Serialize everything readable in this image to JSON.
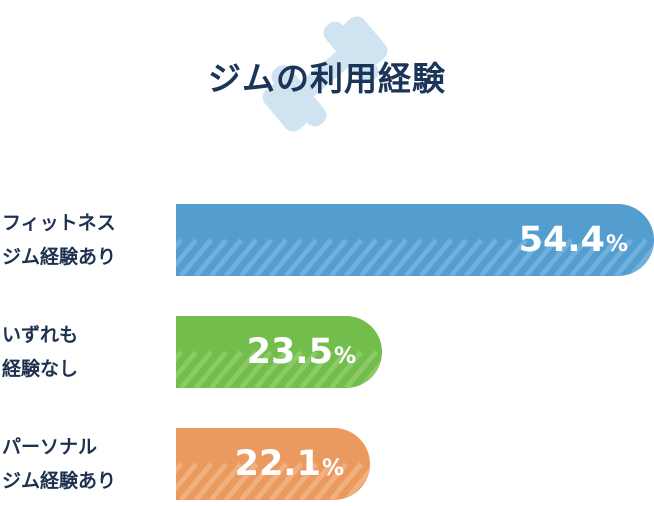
{
  "title": "ジムの利用経験",
  "icon": "dumbbell-icon",
  "chart_data": {
    "type": "bar",
    "orientation": "horizontal",
    "categories": [
      [
        "フィットネス",
        "ジム経験あり"
      ],
      [
        "いずれも",
        "経験なし"
      ],
      [
        "パーソナル",
        "ジム経験あり"
      ]
    ],
    "values": [
      54.4,
      23.5,
      22.1
    ],
    "value_labels": [
      "54.4",
      "23.5",
      "22.1"
    ],
    "unit": "%",
    "colors": [
      "#539dcf",
      "#72bd4c",
      "#eb9a5f"
    ],
    "stripe_colors": [
      "#6fb1dc",
      "#8acb67",
      "#f1b07e"
    ],
    "xlim": [
      0,
      54.4
    ]
  }
}
